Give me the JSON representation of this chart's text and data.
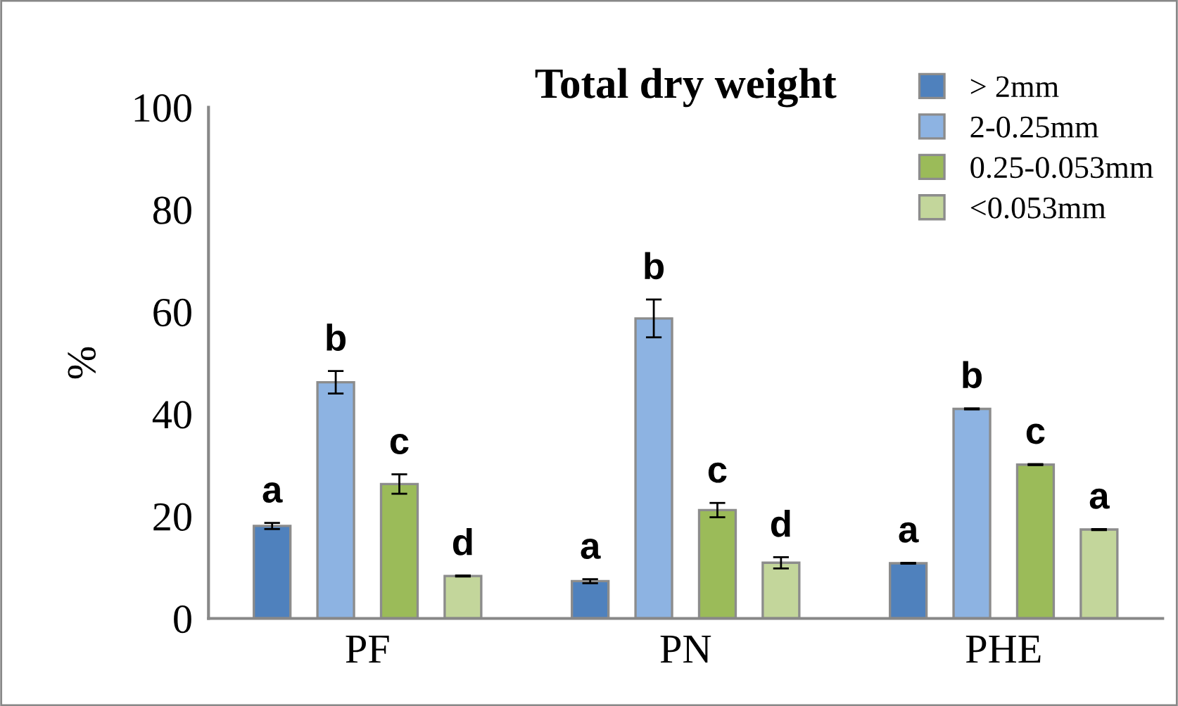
{
  "chart_data": {
    "type": "bar",
    "title": "Total dry weight",
    "ylabel": "%",
    "categories": [
      "PF",
      "PN",
      "PHE"
    ],
    "ylim": [
      0,
      100
    ],
    "yticks": [
      0,
      20,
      40,
      60,
      80,
      100
    ],
    "grid": false,
    "legend": "top right",
    "series": [
      {
        "name": "> 2mm",
        "color": "#4f81bd",
        "values": [
          18.1,
          7.3,
          10.8
        ],
        "errors": [
          0.6,
          0.4,
          0.1
        ],
        "value_labels": [
          "a",
          "a",
          "a"
        ]
      },
      {
        "name": "2-0.25mm",
        "color": "#8db3e2",
        "values": [
          46.2,
          58.7,
          41.0
        ],
        "errors": [
          2.2,
          3.7,
          0.1
        ],
        "value_labels": [
          "b",
          "b",
          "b"
        ]
      },
      {
        "name": "0.25-0.053mm",
        "color": "#9bbb59",
        "values": [
          26.3,
          21.2,
          30.1
        ],
        "errors": [
          1.9,
          1.4,
          0.1
        ],
        "value_labels": [
          "c",
          "c",
          "c"
        ]
      },
      {
        "name": "<0.053mm",
        "color": "#c3d69b",
        "values": [
          8.3,
          10.9,
          17.4
        ],
        "errors": [
          0.1,
          1.1,
          0.1
        ],
        "value_labels": [
          "d",
          "d",
          "a"
        ]
      }
    ]
  }
}
